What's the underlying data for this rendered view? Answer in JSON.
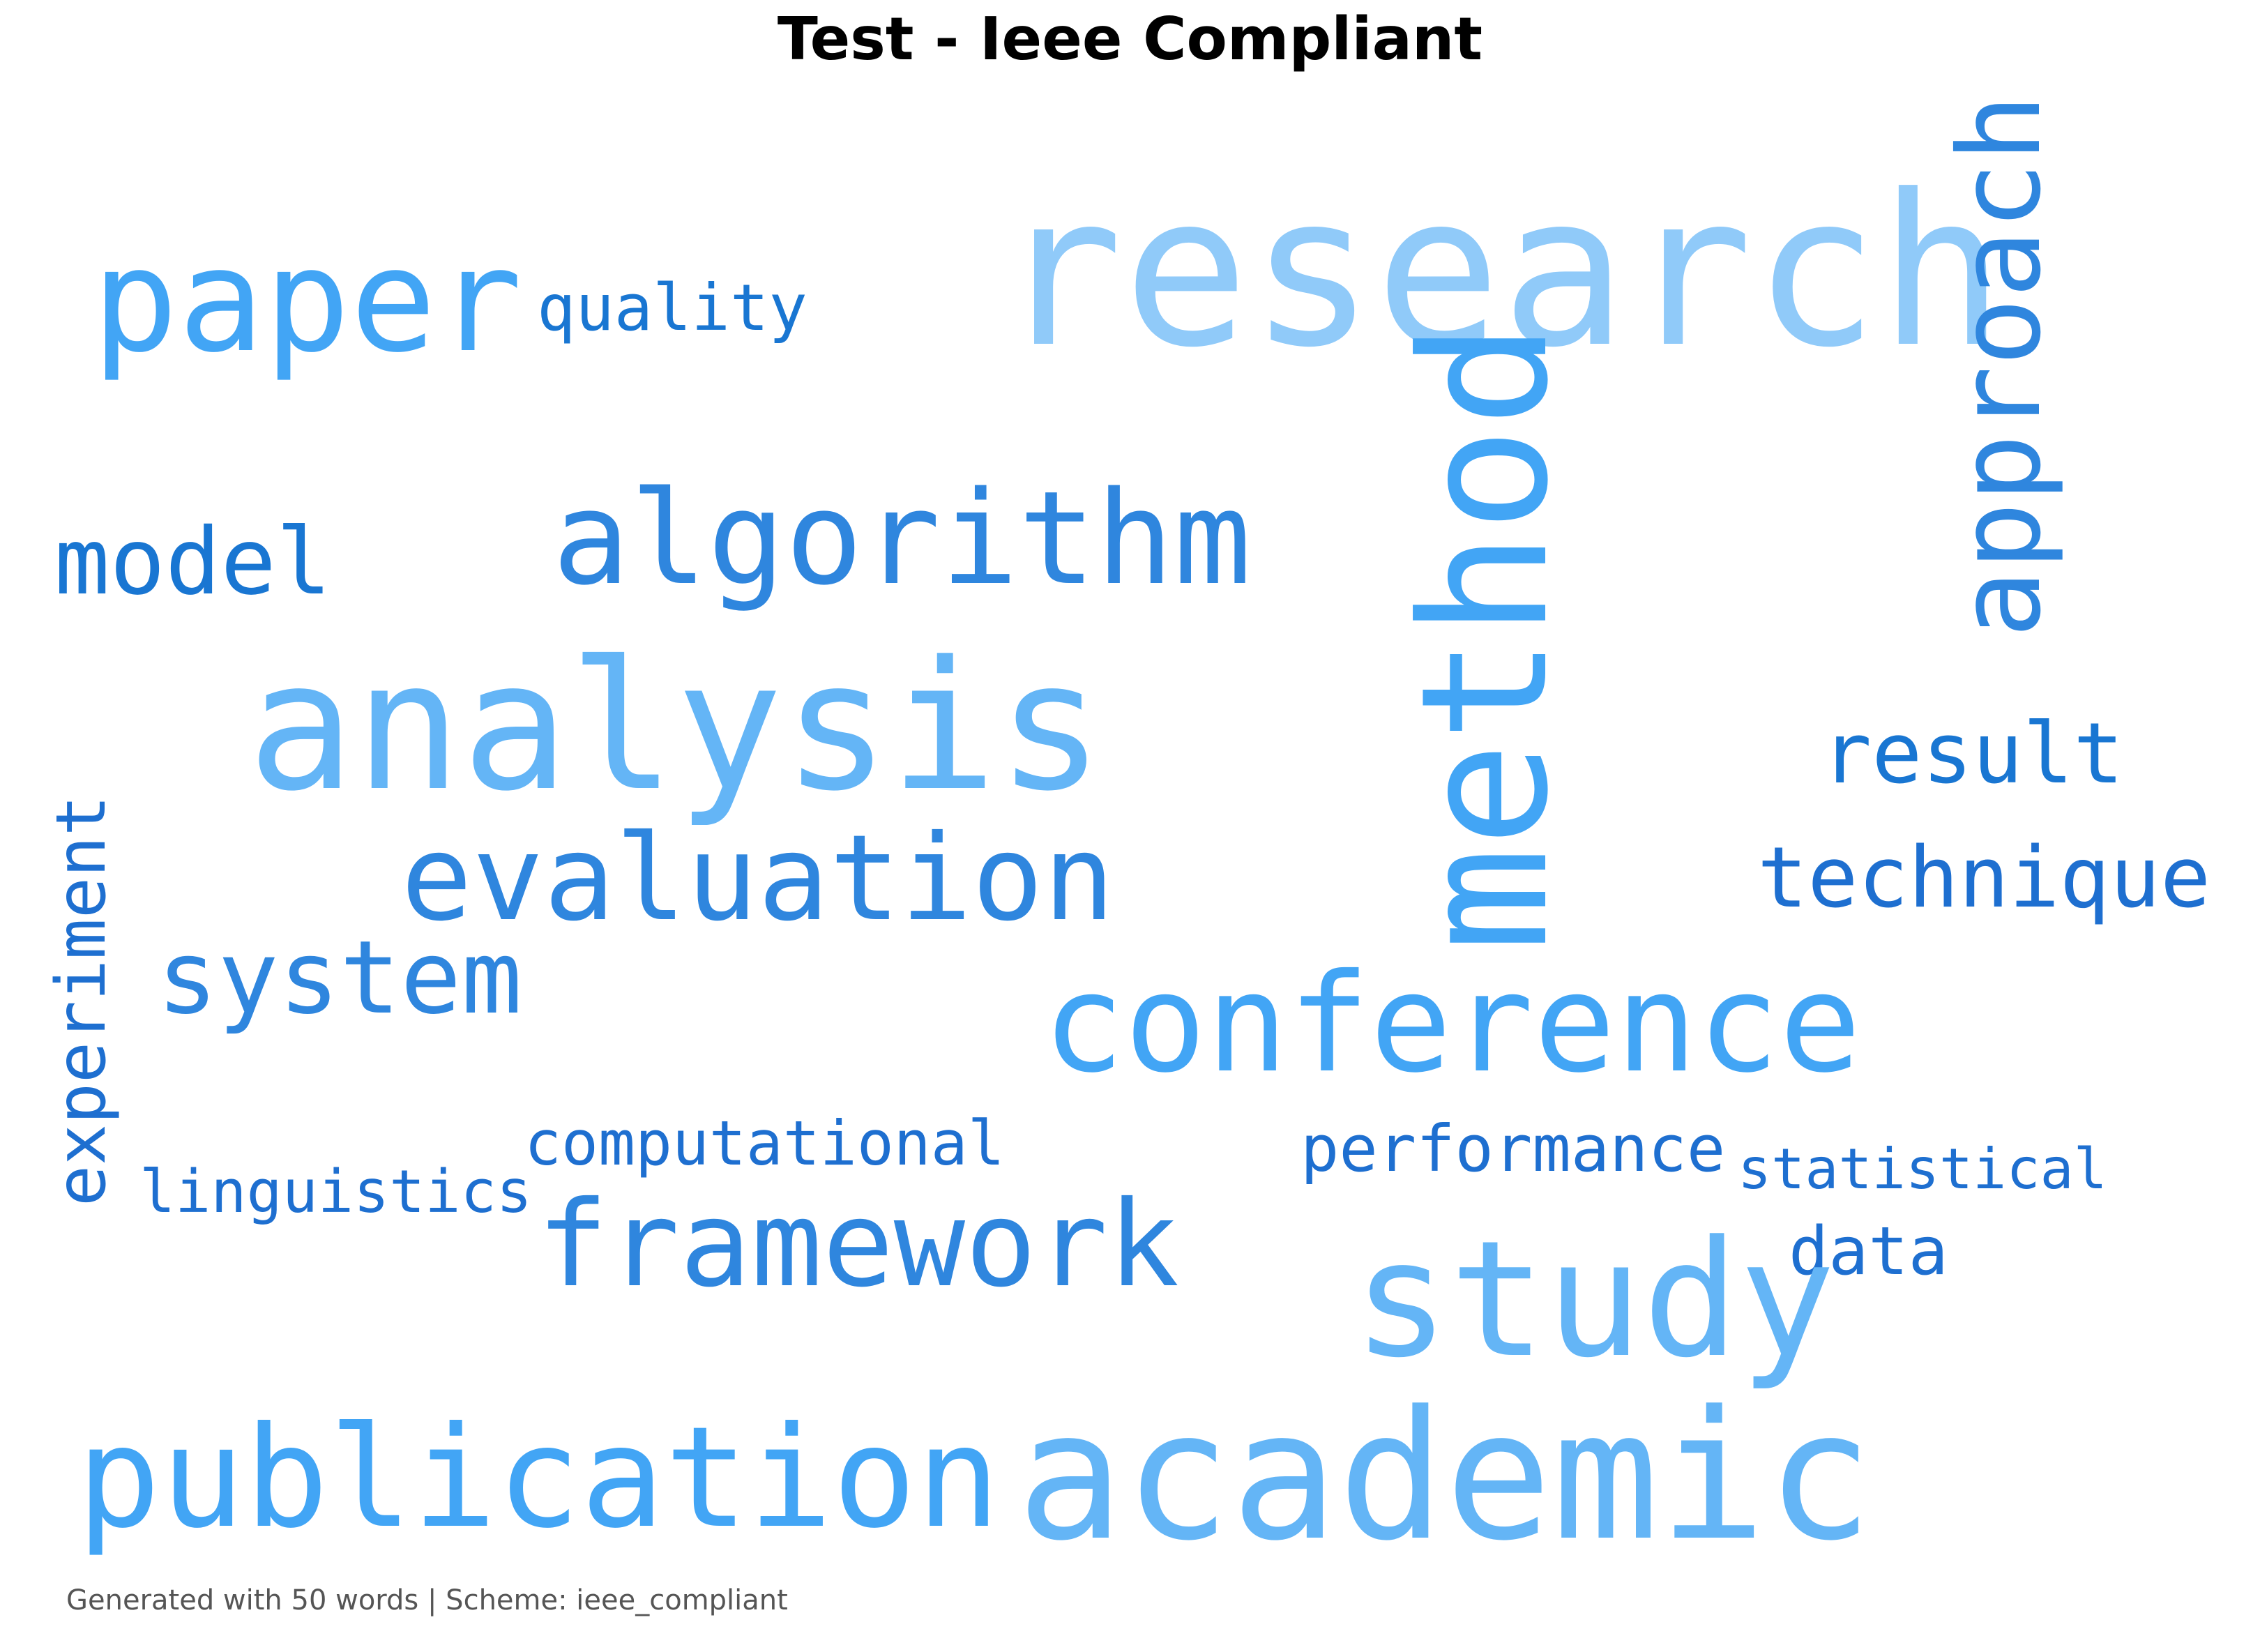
{
  "title": "Test - Ieee Compliant",
  "footer": "Generated with 50 words | Scheme: ieee_compliant",
  "words": {
    "research": "research",
    "paper": "paper",
    "quality": "quality",
    "approach": "approach",
    "method": "method",
    "model": "model",
    "algorithm": "algorithm",
    "analysis": "analysis",
    "result": "result",
    "technique": "technique",
    "experiment": "experiment",
    "evaluation": "evaluation",
    "system": "system",
    "conference": "conference",
    "computational": "computational",
    "linguistics": "linguistics",
    "performance": "performance",
    "statistical": "statistical",
    "framework": "framework",
    "data": "data",
    "study": "study",
    "publication": "publication",
    "academic": "academic"
  },
  "colors": {
    "lightest": "#90caf9",
    "light": "#64b5f6",
    "medium": "#42a5f5",
    "mediumDark": "#2f86de",
    "dark": "#1976d2"
  }
}
